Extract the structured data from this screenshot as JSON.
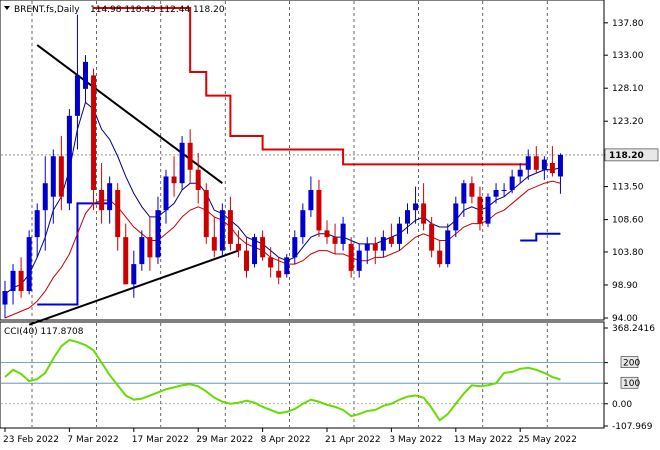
{
  "header": {
    "symbol": "BRENT.fs,Daily",
    "ohlc": "114.98 118.43 112.44 118.20"
  },
  "colors": {
    "bull": "#0000cc",
    "bear": "#cc0000",
    "ma_fast": "#00007f",
    "ma_slow": "#cc0000",
    "stop_high": "#dd0000",
    "stop_low": "#0000dd",
    "cci": "#66dd00",
    "trend": "#000000",
    "level": "#4a8aa8",
    "price_tag": "#e8e8e8"
  },
  "price_panel": {
    "current_price": "118.20",
    "ticks": [
      "137.80",
      "133.00",
      "128.10",
      "123.20",
      "118.20",
      "113.50",
      "108.60",
      "103.80",
      "98.90",
      "94.00"
    ]
  },
  "cci_panel": {
    "label": "CCI(40) 117.8708",
    "ticks": [
      "368.2416",
      "200",
      "100",
      "0.00",
      "-107.969"
    ]
  },
  "x_axis": {
    "labels": [
      "23 Feb 2022",
      "7 Mar 2022",
      "17 Mar 2022",
      "29 Mar 2022",
      "8 Apr 2022",
      "21 Apr 2022",
      "3 May 2022",
      "13 May 2022",
      "25 May 2022"
    ]
  },
  "chart_data": {
    "type": "candlestick",
    "ylim": [
      94.0,
      140.0
    ],
    "cci_ylim": [
      -107.969,
      368.2416
    ],
    "candles": [
      [
        96.0,
        99.5,
        94.0,
        98.0
      ],
      [
        98.0,
        102.0,
        96.0,
        101.0
      ],
      [
        101.0,
        103.0,
        97.0,
        98.0
      ],
      [
        98.0,
        107.0,
        97.5,
        106.0
      ],
      [
        106.0,
        111.0,
        103.0,
        110.0
      ],
      [
        110.0,
        118.0,
        104.0,
        114.0
      ],
      [
        112.0,
        119.0,
        108.0,
        118.0
      ],
      [
        118.0,
        121.0,
        110.0,
        112.0
      ],
      [
        111.0,
        125.0,
        110.0,
        124.0
      ],
      [
        124.0,
        139.0,
        119.0,
        130.0
      ],
      [
        128.0,
        133.0,
        126.0,
        132.0
      ],
      [
        130.0,
        131.0,
        110.0,
        113.0
      ],
      [
        113.0,
        117.0,
        108.0,
        110.0
      ],
      [
        110.0,
        115.0,
        108.0,
        114.0
      ],
      [
        113.0,
        114.0,
        104.0,
        106.0
      ],
      [
        106.0,
        108.0,
        99.0,
        99.0
      ],
      [
        99.0,
        104.0,
        97.0,
        102.0
      ],
      [
        102.0,
        107.0,
        101.0,
        106.0
      ],
      [
        106.0,
        109.0,
        101.0,
        103.0
      ],
      [
        103.0,
        112.0,
        102.0,
        110.0
      ],
      [
        110.0,
        116.0,
        108.0,
        115.0
      ],
      [
        115.0,
        118.0,
        112.0,
        114.0
      ],
      [
        114.0,
        121.0,
        113.0,
        120.0
      ],
      [
        120.0,
        122.0,
        114.0,
        116.0
      ],
      [
        116.0,
        118.5,
        111.0,
        113.0
      ],
      [
        113.0,
        114.0,
        105.0,
        106.0
      ],
      [
        106.0,
        109.0,
        103.0,
        104.0
      ],
      [
        104.0,
        111.0,
        103.0,
        110.0
      ],
      [
        110.0,
        112.0,
        104.0,
        105.0
      ],
      [
        105.0,
        107.0,
        103.0,
        104.0
      ],
      [
        104.0,
        106.0,
        100.0,
        101.0
      ],
      [
        102.0,
        106.5,
        101.5,
        106.0
      ],
      [
        106.0,
        107.0,
        102.5,
        103.0
      ],
      [
        103.0,
        104.5,
        100.0,
        101.5
      ],
      [
        101.0,
        103.0,
        99.0,
        100.0
      ],
      [
        100.5,
        103.5,
        100.0,
        103.0
      ],
      [
        103.0,
        107.0,
        102.0,
        106.0
      ],
      [
        106.0,
        111.0,
        105.0,
        110.0
      ],
      [
        110.0,
        115.0,
        109.0,
        113.0
      ],
      [
        113.0,
        114.5,
        106.0,
        107.0
      ],
      [
        107.0,
        108.5,
        105.0,
        106.0
      ],
      [
        106.0,
        108.0,
        103.5,
        105.0
      ],
      [
        105.0,
        109.0,
        104.0,
        108.0
      ],
      [
        105.0,
        106.0,
        100.0,
        101.0
      ],
      [
        101.0,
        105.0,
        100.0,
        104.0
      ],
      [
        104.0,
        106.0,
        102.0,
        105.0
      ],
      [
        105.0,
        106.0,
        102.0,
        104.0
      ],
      [
        104.0,
        107.0,
        103.0,
        106.0
      ],
      [
        106.0,
        108.0,
        104.5,
        105.0
      ],
      [
        105.0,
        109.0,
        104.0,
        108.0
      ],
      [
        108.0,
        111.0,
        106.5,
        110.0
      ],
      [
        110.0,
        113.5,
        108.0,
        111.0
      ],
      [
        111.0,
        114.0,
        107.0,
        108.0
      ],
      [
        108.0,
        109.0,
        103.0,
        104.0
      ],
      [
        104.0,
        105.5,
        101.5,
        102.0
      ],
      [
        102.0,
        108.0,
        101.5,
        107.0
      ],
      [
        107.0,
        112.0,
        106.0,
        111.0
      ],
      [
        111.0,
        114.5,
        109.0,
        114.0
      ],
      [
        114.0,
        115.0,
        111.0,
        112.0
      ],
      [
        112.0,
        113.5,
        107.0,
        108.0
      ],
      [
        108.0,
        112.5,
        107.5,
        112.0
      ],
      [
        112.0,
        114.0,
        111.0,
        113.0
      ],
      [
        113.0,
        114.0,
        112.0,
        113.0
      ],
      [
        113.0,
        116.0,
        112.5,
        115.0
      ],
      [
        115.0,
        117.0,
        114.0,
        116.0
      ],
      [
        116.0,
        119.0,
        114.5,
        118.0
      ],
      [
        118.0,
        119.5,
        115.5,
        116.0
      ],
      [
        116.0,
        118.0,
        114.5,
        117.5
      ],
      [
        117.0,
        119.5,
        115.0,
        115.5
      ],
      [
        115.0,
        118.43,
        112.44,
        118.2
      ]
    ],
    "ma_fast": [
      97.5,
      98.5,
      99.0,
      100.5,
      103.0,
      106.0,
      110.0,
      112.0,
      116.0,
      122.0,
      126.0,
      125.0,
      122.0,
      120.5,
      118.0,
      115.0,
      112.5,
      110.5,
      109.0,
      109.0,
      110.0,
      111.0,
      113.0,
      114.0,
      114.0,
      112.5,
      110.0,
      109.5,
      108.5,
      107.5,
      106.0,
      105.5,
      105.0,
      104.0,
      103.0,
      102.5,
      103.0,
      104.5,
      106.0,
      106.5,
      106.5,
      106.0,
      106.0,
      105.5,
      105.0,
      105.0,
      105.0,
      105.5,
      106.0,
      106.5,
      107.5,
      108.5,
      109.0,
      108.0,
      107.5,
      107.5,
      108.5,
      110.0,
      110.5,
      110.0,
      110.5,
      111.5,
      112.0,
      113.0,
      114.0,
      115.0,
      115.5,
      116.0,
      116.0,
      116.3
    ],
    "ma_slow": [
      94.0,
      94.5,
      95.0,
      95.5,
      96.5,
      98.0,
      100.0,
      101.5,
      103.5,
      106.5,
      109.5,
      111.0,
      111.5,
      111.5,
      110.5,
      109.0,
      107.5,
      106.5,
      105.5,
      105.5,
      106.5,
      107.5,
      109.0,
      110.0,
      110.5,
      110.0,
      109.0,
      108.5,
      107.5,
      106.0,
      105.0,
      104.5,
      104.0,
      103.0,
      102.5,
      102.0,
      102.0,
      102.5,
      103.5,
      104.0,
      104.0,
      103.5,
      103.5,
      103.0,
      102.5,
      102.5,
      103.0,
      103.0,
      103.5,
      104.0,
      105.0,
      106.0,
      106.5,
      106.0,
      105.5,
      105.5,
      106.5,
      107.5,
      108.0,
      108.0,
      108.5,
      109.5,
      110.0,
      111.0,
      112.0,
      113.0,
      113.5,
      114.0,
      114.3,
      114.0
    ],
    "stop_high": [
      {
        "from": 11,
        "to": 23,
        "value": 140.0
      },
      {
        "from": 23,
        "to": 25,
        "value": 130.5
      },
      {
        "from": 25,
        "to": 28,
        "value": 127.0
      },
      {
        "from": 28,
        "to": 32,
        "value": 121.0
      },
      {
        "from": 32,
        "to": 42,
        "value": 119.0
      },
      {
        "from": 42,
        "to": 65,
        "value": 116.8
      }
    ],
    "stop_low": [
      {
        "from": 4,
        "to": 9,
        "value": 96.0
      },
      {
        "from": 9,
        "to": 13,
        "value": 111.0
      },
      {
        "from": 64,
        "to": 66,
        "value": 105.5
      },
      {
        "from": 66,
        "to": 69,
        "value": 106.5
      }
    ],
    "trendlines": [
      {
        "from": [
          4,
          134.5
        ],
        "to": [
          27,
          114.0
        ]
      },
      {
        "from": [
          3,
          93.0
        ],
        "to": [
          29,
          104.0
        ]
      }
    ],
    "cci": [
      130,
      165,
      145,
      110,
      120,
      150,
      220,
      280,
      310,
      300,
      285,
      260,
      200,
      140,
      90,
      40,
      20,
      25,
      40,
      55,
      70,
      80,
      90,
      95,
      85,
      60,
      30,
      10,
      0,
      5,
      15,
      5,
      -15,
      -30,
      -45,
      -40,
      -25,
      0,
      20,
      10,
      -5,
      -15,
      -30,
      -60,
      -50,
      -35,
      -30,
      -10,
      0,
      20,
      35,
      40,
      30,
      -20,
      -80,
      -50,
      0,
      50,
      90,
      85,
      90,
      100,
      150,
      155,
      170,
      175,
      165,
      150,
      130,
      118
    ],
    "cci_levels": [
      200,
      100,
      0
    ]
  }
}
